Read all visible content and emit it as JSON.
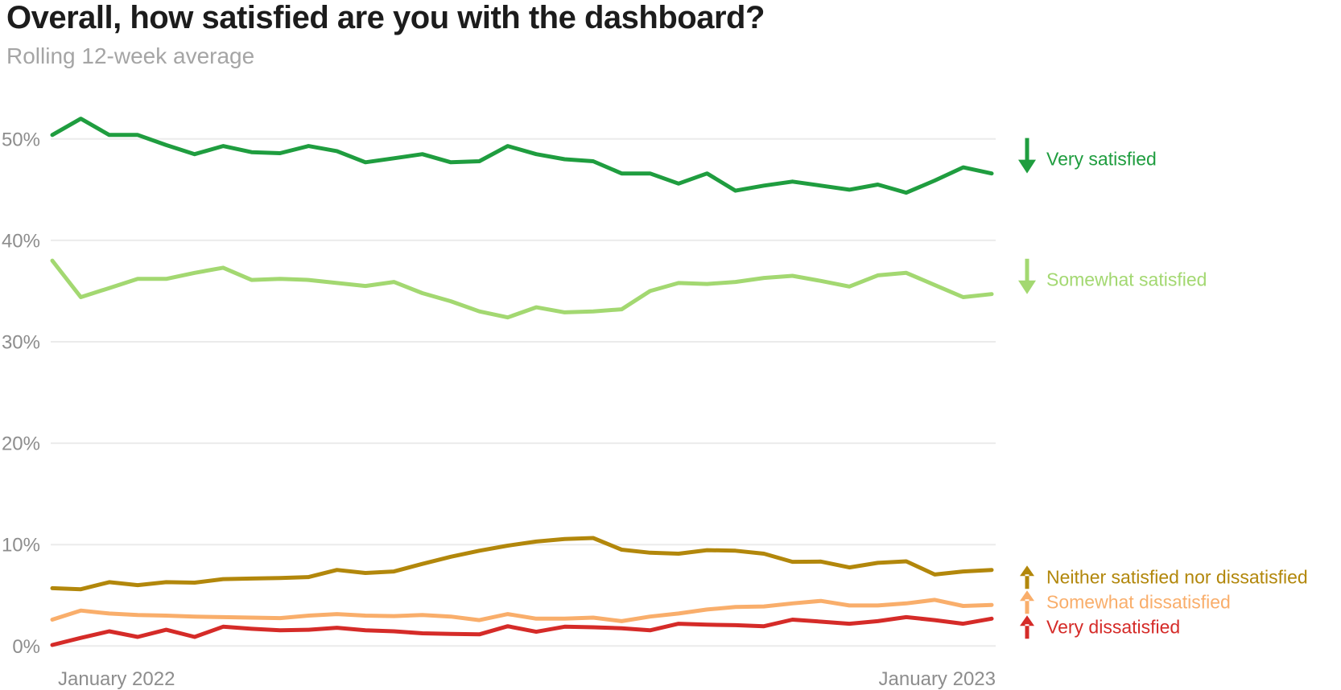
{
  "title": "Overall, how satisfied are you with the dashboard?",
  "subtitle": "Rolling 12-week average",
  "colors": {
    "background": "#ffffff",
    "title": "#1c1c1c",
    "subtitle": "#a5a5a5",
    "axis_label": "#8d8d8d",
    "gridline": "#ebebeb"
  },
  "chart_data": {
    "type": "line",
    "title": "Overall, how satisfied are you with the dashboard?",
    "subtitle": "Rolling 12-week average",
    "unit": "%",
    "x_tick_labels": [
      "January 2022",
      "January 2023"
    ],
    "y_tick_labels": [
      "0%",
      "10%",
      "20%",
      "30%",
      "40%",
      "50%"
    ],
    "ylim": [
      0,
      52.5
    ],
    "grid": "horizontal",
    "legend_position": "right",
    "series": [
      {
        "name": "Very satisfied",
        "color": "#1f9d3f",
        "trend_arrow": "down",
        "values": [
          50.4,
          52.0,
          50.4,
          50.4,
          49.4,
          48.5,
          49.3,
          48.7,
          48.6,
          49.3,
          48.8,
          47.7,
          48.1,
          48.5,
          47.7,
          47.8,
          49.3,
          48.5,
          48.0,
          47.8,
          46.6,
          46.6,
          45.6,
          46.6,
          44.9,
          45.4,
          45.8,
          45.4,
          45.0,
          45.5,
          44.7,
          45.9,
          47.2,
          46.6
        ]
      },
      {
        "name": "Somewhat satisfied",
        "color": "#a3d871",
        "trend_arrow": "down",
        "values": [
          38.0,
          34.4,
          35.3,
          36.2,
          36.2,
          36.8,
          37.3,
          36.1,
          36.2,
          36.1,
          35.8,
          35.5,
          35.9,
          34.8,
          34.0,
          33.0,
          32.4,
          33.4,
          32.9,
          33.0,
          33.2,
          35.0,
          35.8,
          35.7,
          35.9,
          36.3,
          36.5,
          36.0,
          35.45,
          36.55,
          36.8,
          35.6,
          34.4,
          34.7
        ]
      },
      {
        "name": "Neither satisfied nor dissatisfied",
        "color": "#b2870b",
        "trend_arrow": "up",
        "values": [
          5.7,
          5.6,
          6.3,
          6.0,
          6.3,
          6.25,
          6.6,
          6.65,
          6.7,
          6.8,
          7.5,
          7.2,
          7.35,
          8.1,
          8.8,
          9.4,
          9.9,
          10.3,
          10.55,
          10.65,
          9.5,
          9.2,
          9.1,
          9.45,
          9.4,
          9.1,
          8.3,
          8.33,
          7.75,
          8.2,
          8.35,
          7.05,
          7.35,
          7.5
        ]
      },
      {
        "name": "Somewhat dissatisfied",
        "color": "#f9ae6b",
        "trend_arrow": "up",
        "values": [
          2.6,
          3.5,
          3.2,
          3.05,
          3.0,
          2.9,
          2.85,
          2.8,
          2.75,
          3.0,
          3.15,
          3.0,
          2.95,
          3.05,
          2.9,
          2.55,
          3.15,
          2.7,
          2.7,
          2.8,
          2.45,
          2.9,
          3.2,
          3.6,
          3.85,
          3.9,
          4.2,
          4.45,
          4.0,
          4.0,
          4.2,
          4.55,
          3.95,
          4.05
        ]
      },
      {
        "name": "Very dissatisfied",
        "color": "#d52b28",
        "trend_arrow": "up",
        "values": [
          0.1,
          0.8,
          1.45,
          0.9,
          1.6,
          0.9,
          1.9,
          1.7,
          1.55,
          1.6,
          1.8,
          1.55,
          1.45,
          1.25,
          1.2,
          1.15,
          1.95,
          1.4,
          1.9,
          1.85,
          1.75,
          1.55,
          2.2,
          2.1,
          2.05,
          1.95,
          2.6,
          2.4,
          2.2,
          2.45,
          2.85,
          2.55,
          2.2,
          2.7
        ]
      }
    ]
  }
}
